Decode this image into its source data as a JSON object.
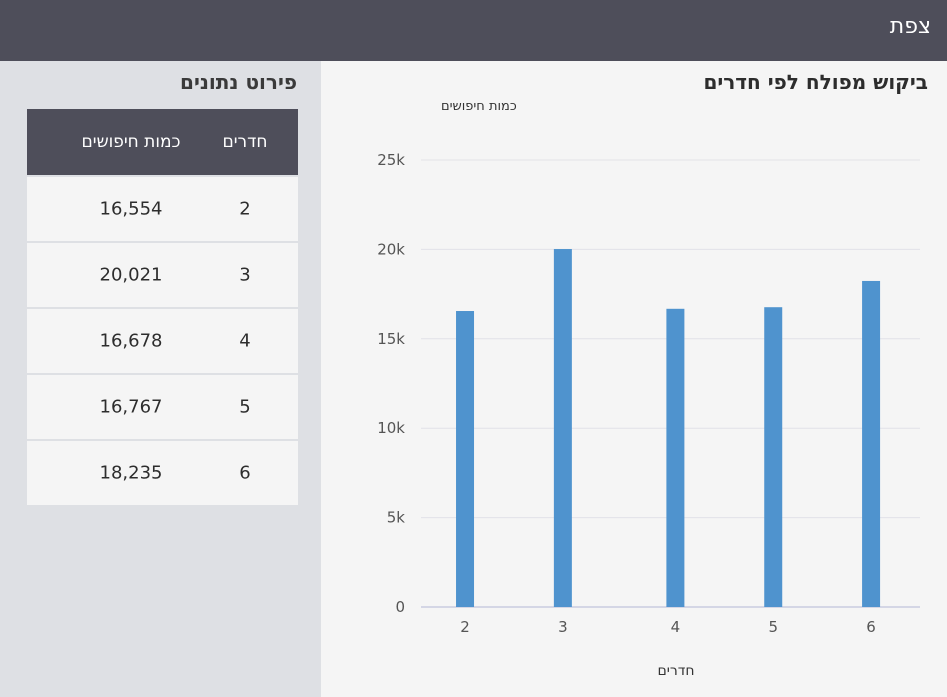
{
  "header": {
    "title": "צפת"
  },
  "table": {
    "title": "פירוט נתונים",
    "headers": {
      "rooms": "חדרים",
      "count": "כמות חיפושים"
    },
    "rows": [
      {
        "rooms": "2",
        "count": "16,554"
      },
      {
        "rooms": "3",
        "count": "20,021"
      },
      {
        "rooms": "4",
        "count": "16,678"
      },
      {
        "rooms": "5",
        "count": "16,767"
      },
      {
        "rooms": "6",
        "count": "18,235"
      }
    ]
  },
  "chart_data": {
    "type": "bar",
    "title": "ביקוש מפולח לפי חדרים",
    "xlabel": "חדרים",
    "ylabel": "כמות חיפושים",
    "categories": [
      "2",
      "3",
      "4",
      "5",
      "6"
    ],
    "x": [
      2,
      3,
      4.15,
      5.15,
      6.15
    ],
    "values": [
      16554,
      20021,
      16678,
      16767,
      18235
    ],
    "ylim": [
      0,
      25000
    ],
    "yticks": [
      0,
      5000,
      10000,
      15000,
      20000,
      25000
    ],
    "ytick_labels": [
      "0",
      "5k",
      "10k",
      "15k",
      "20k",
      "25k"
    ],
    "grid": true,
    "colors": {
      "bar": "#4f93ce",
      "grid": "#e2e2e8",
      "axis": "#c9cbe0",
      "tick_text": "#555555"
    }
  }
}
